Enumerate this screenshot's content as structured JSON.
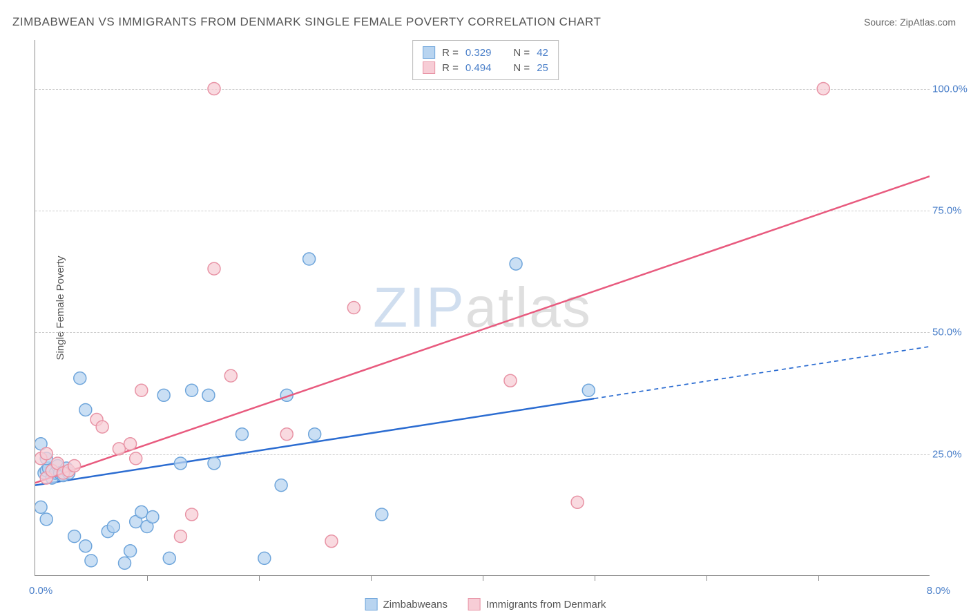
{
  "title": "ZIMBABWEAN VS IMMIGRANTS FROM DENMARK SINGLE FEMALE POVERTY CORRELATION CHART",
  "source_label": "Source: ",
  "source_name": "ZipAtlas.com",
  "ylabel": "Single Female Poverty",
  "watermark_zip": "ZIP",
  "watermark_atlas": "atlas",
  "chart": {
    "type": "scatter",
    "xlim": [
      0,
      8
    ],
    "ylim": [
      0,
      110
    ],
    "xmin_label": "0.0%",
    "xmax_label": "8.0%",
    "yticks": [
      {
        "value": 25,
        "label": "25.0%"
      },
      {
        "value": 50,
        "label": "50.0%"
      },
      {
        "value": 75,
        "label": "75.0%"
      },
      {
        "value": 100,
        "label": "100.0%"
      }
    ],
    "xticks_minor": [
      1,
      2,
      3,
      4,
      5,
      6,
      7
    ],
    "background_color": "#ffffff",
    "grid_color": "#cccccc",
    "axis_color": "#888888",
    "tick_label_color": "#4a7fc9",
    "series": [
      {
        "name": "Zimbabweans",
        "legend_label": "Zimbabweans",
        "marker_color_fill": "#b8d4f0",
        "marker_color_stroke": "#6ea5db",
        "marker_radius": 9,
        "marker_opacity": 0.75,
        "trend_color": "#2b6cd1",
        "trend_width": 2.5,
        "trend_solid_end_x": 5.0,
        "trend_y_at_0": 18.5,
        "trend_y_at_8": 47,
        "R": "0.329",
        "N": "42",
        "points": [
          [
            0.05,
            27
          ],
          [
            0.08,
            21
          ],
          [
            0.1,
            21.5
          ],
          [
            0.12,
            22
          ],
          [
            0.15,
            20
          ],
          [
            0.1,
            24
          ],
          [
            0.18,
            21
          ],
          [
            0.2,
            22.5
          ],
          [
            0.22,
            21
          ],
          [
            0.25,
            20.5
          ],
          [
            0.28,
            22
          ],
          [
            0.3,
            21
          ],
          [
            0.05,
            14
          ],
          [
            0.1,
            11.5
          ],
          [
            0.35,
            8
          ],
          [
            0.45,
            6
          ],
          [
            0.5,
            3
          ],
          [
            0.65,
            9
          ],
          [
            0.7,
            10
          ],
          [
            0.8,
            2.5
          ],
          [
            0.85,
            5
          ],
          [
            0.9,
            11
          ],
          [
            0.95,
            13
          ],
          [
            1.0,
            10
          ],
          [
            1.05,
            12
          ],
          [
            1.2,
            3.5
          ],
          [
            1.3,
            23
          ],
          [
            1.4,
            38
          ],
          [
            1.55,
            37
          ],
          [
            1.6,
            23
          ],
          [
            1.15,
            37
          ],
          [
            0.4,
            40.5
          ],
          [
            0.45,
            34
          ],
          [
            1.85,
            29
          ],
          [
            2.05,
            3.5
          ],
          [
            2.2,
            18.5
          ],
          [
            2.25,
            37
          ],
          [
            2.45,
            65
          ],
          [
            2.5,
            29
          ],
          [
            3.1,
            12.5
          ],
          [
            4.3,
            64
          ],
          [
            4.95,
            38
          ]
        ]
      },
      {
        "name": "Immigrants from Denmark",
        "legend_label": "Immigrants from Denmark",
        "marker_color_fill": "#f7cdd6",
        "marker_color_stroke": "#e893a5",
        "marker_radius": 9,
        "marker_opacity": 0.75,
        "trend_color": "#e85a7e",
        "trend_width": 2.5,
        "trend_solid_end_x": 8.0,
        "trend_y_at_0": 19,
        "trend_y_at_8": 82,
        "R": "0.494",
        "N": "25",
        "points": [
          [
            0.05,
            24
          ],
          [
            0.1,
            20
          ],
          [
            0.15,
            21.5
          ],
          [
            0.2,
            23
          ],
          [
            0.25,
            21
          ],
          [
            0.3,
            21.5
          ],
          [
            0.35,
            22.5
          ],
          [
            0.55,
            32
          ],
          [
            0.6,
            30.5
          ],
          [
            0.75,
            26
          ],
          [
            0.85,
            27
          ],
          [
            0.9,
            24
          ],
          [
            0.95,
            38
          ],
          [
            1.3,
            8
          ],
          [
            1.4,
            12.5
          ],
          [
            1.6,
            100
          ],
          [
            1.6,
            63
          ],
          [
            1.75,
            41
          ],
          [
            2.25,
            29
          ],
          [
            2.65,
            7
          ],
          [
            2.85,
            55
          ],
          [
            4.25,
            40
          ],
          [
            4.85,
            15
          ],
          [
            7.05,
            100
          ],
          [
            0.1,
            25
          ]
        ]
      }
    ]
  },
  "legend_top": {
    "r_label": "R =",
    "n_label": "N ="
  }
}
